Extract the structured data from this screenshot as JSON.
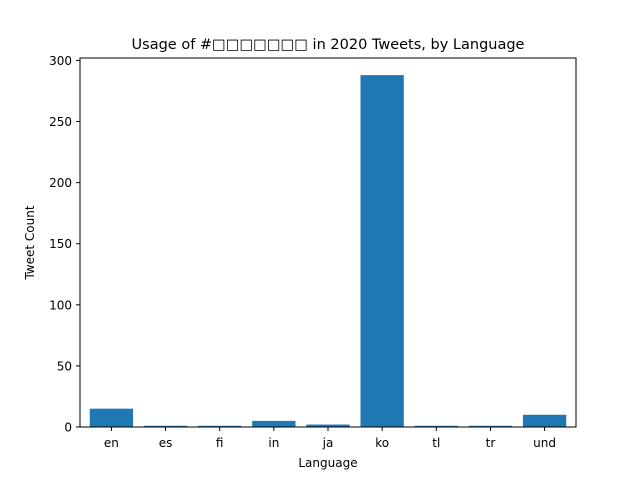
{
  "chart_data": {
    "type": "bar",
    "title": "Usage of #□□□□□□□ in 2020 Tweets, by Language",
    "xlabel": "Language",
    "ylabel": "Tweet Count",
    "categories": [
      "en",
      "es",
      "fi",
      "in",
      "ja",
      "ko",
      "tl",
      "tr",
      "und"
    ],
    "values": [
      15,
      1,
      1,
      5,
      2,
      288,
      1,
      1,
      10
    ],
    "ylim": [
      0,
      302
    ],
    "yticks": [
      0,
      50,
      100,
      150,
      200,
      250,
      300
    ],
    "bar_color": "#1f77b4",
    "grid": false,
    "legend": "none"
  }
}
